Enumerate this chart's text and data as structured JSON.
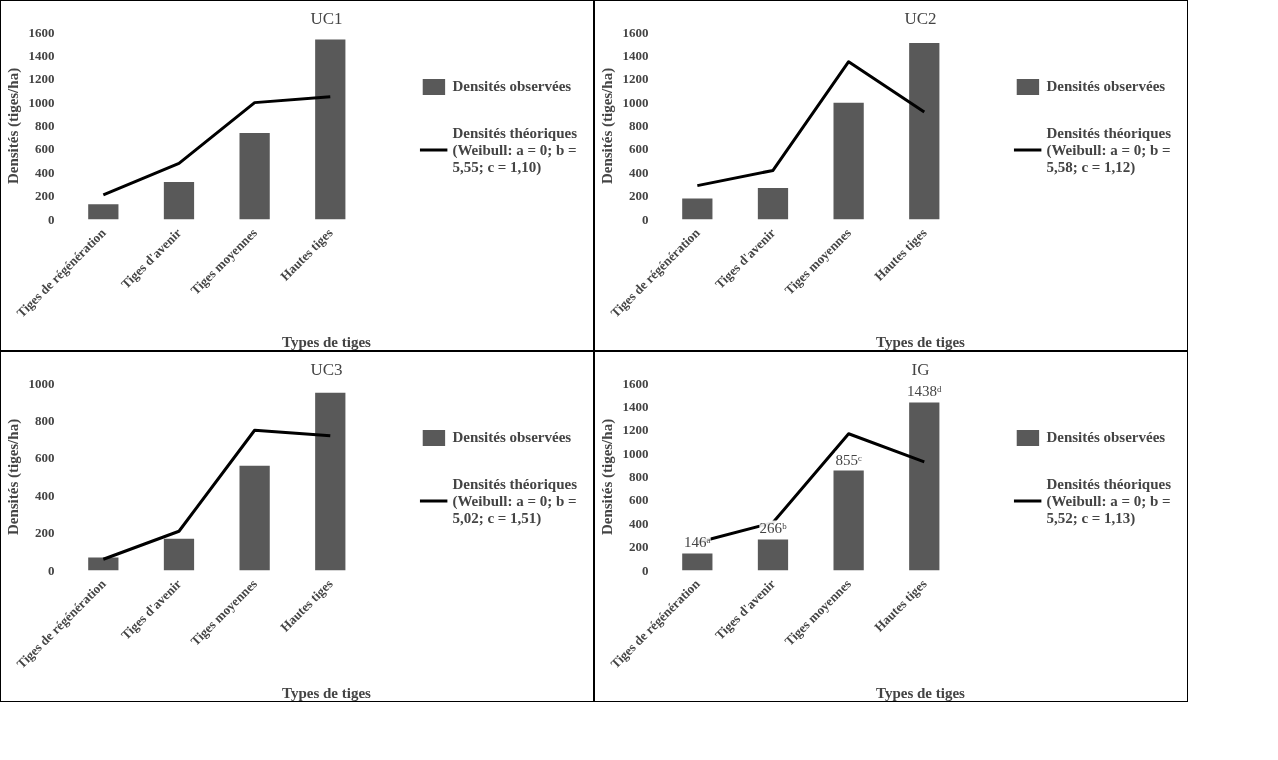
{
  "chart_data": [
    {
      "type": "bar",
      "title": "UC1",
      "xlabel": "Types de tiges",
      "ylabel": "Densités (tiges/ha)",
      "categories": [
        "Tiges de régénération",
        "Tiges d'avenir",
        "Tiges moyennes",
        "Hautes tiges"
      ],
      "series": [
        {
          "name": "Densités observées",
          "color": "#595959",
          "values": [
            130,
            320,
            740,
            1540
          ]
        },
        {
          "name": "Densités théoriques (Weibull: a = 0; b = 5,55; c = 1,10)",
          "type": "line",
          "color": "#000000",
          "values": [
            210,
            480,
            1000,
            1050
          ]
        }
      ],
      "ylim": [
        0,
        1600
      ],
      "yticks": [
        0,
        200,
        400,
        600,
        800,
        1000,
        1200,
        1400,
        1600
      ],
      "grid": false,
      "legend": "right"
    },
    {
      "type": "bar",
      "title": "UC2",
      "xlabel": "Types de tiges",
      "ylabel": "Densités (tiges/ha)",
      "categories": [
        "Tiges de régénération",
        "Tiges d'avenir",
        "Tiges moyennes",
        "Hautes tiges"
      ],
      "series": [
        {
          "name": "Densités observées",
          "color": "#595959",
          "values": [
            180,
            270,
            1000,
            1510
          ]
        },
        {
          "name": "Densités théoriques (Weibull: a = 0; b = 5,58; c = 1,12)",
          "type": "line",
          "color": "#000000",
          "values": [
            290,
            420,
            1350,
            920
          ]
        }
      ],
      "ylim": [
        0,
        1600
      ],
      "yticks": [
        0,
        200,
        400,
        600,
        800,
        1000,
        1200,
        1400,
        1600
      ],
      "grid": false,
      "legend": "right"
    },
    {
      "type": "bar",
      "title": "UC3",
      "xlabel": "Types de tiges",
      "ylabel": "Densités (tiges/ha)",
      "categories": [
        "Tiges de régénération",
        "Tiges d'avenir",
        "Tiges moyennes",
        "Hautes tiges"
      ],
      "series": [
        {
          "name": "Densités observées",
          "color": "#595959",
          "values": [
            70,
            170,
            560,
            950
          ]
        },
        {
          "name": "Densités théoriques (Weibull: a = 0; b = 5,02; c = 1,51)",
          "type": "line",
          "color": "#000000",
          "values": [
            60,
            210,
            750,
            720
          ]
        }
      ],
      "ylim": [
        0,
        1000
      ],
      "yticks": [
        0,
        200,
        400,
        600,
        800,
        1000
      ],
      "grid": false,
      "legend": "right"
    },
    {
      "type": "bar",
      "title": "IG",
      "xlabel": "Types de tiges",
      "ylabel": "Densités (tiges/ha)",
      "categories": [
        "Tiges de régénération",
        "Tiges d'avenir",
        "Tiges moyennes",
        "Hautes tiges"
      ],
      "series": [
        {
          "name": "Densités observées",
          "color": "#595959",
          "values": [
            146,
            266,
            855,
            1438
          ],
          "value_labels": [
            "146ᵃ",
            "266ᵇ",
            "855ᶜ",
            "1438ᵈ"
          ]
        },
        {
          "name": "Densités théoriques (Weibull: a = 0; b = 5,52; c = 1,13)",
          "type": "line",
          "color": "#000000",
          "values": [
            240,
            410,
            1170,
            930
          ]
        }
      ],
      "ylim": [
        0,
        1600
      ],
      "yticks": [
        0,
        200,
        400,
        600,
        800,
        1000,
        1200,
        1400,
        1600
      ],
      "grid": false,
      "legend": "right"
    }
  ]
}
